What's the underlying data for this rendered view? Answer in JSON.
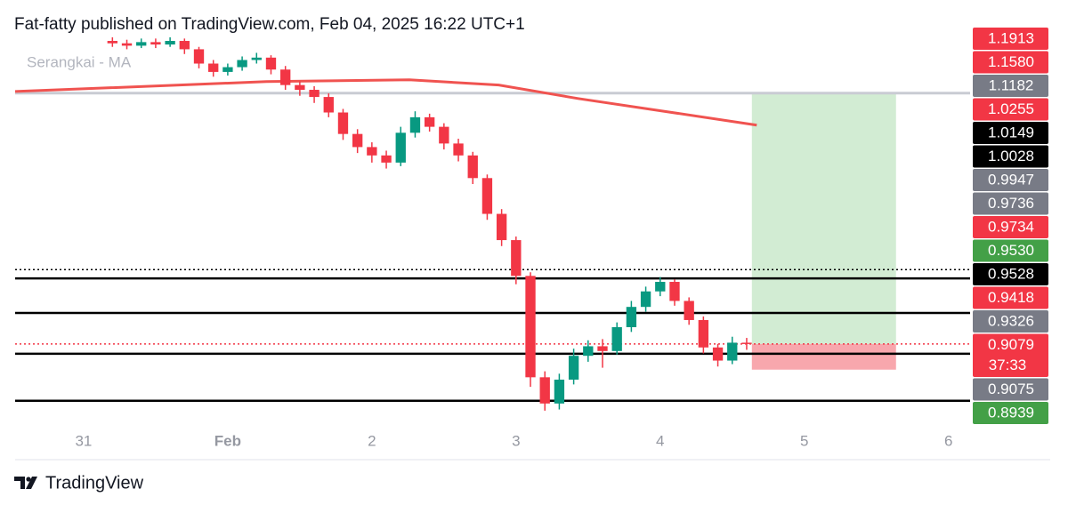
{
  "header": "Fat-fatty published on TradingView.com, Feb 04, 2025 16:22 UTC+1",
  "footer": "TradingView",
  "chart_data": {
    "type": "candlestick",
    "legend": "Serangkai - MA",
    "up_color": "#089981",
    "down_color": "#f23645",
    "xlim": [
      -0.475,
      6.15
    ],
    "ylim": [
      0.84,
      1.165
    ],
    "xticks": [
      {
        "value": 0,
        "label": "31"
      },
      {
        "value": 1,
        "label": "Feb"
      },
      2,
      3,
      4,
      5,
      6
    ],
    "x": [
      0.2,
      0.3,
      0.4,
      0.5,
      0.6,
      0.7,
      0.8,
      0.9,
      1.0,
      1.1,
      1.2,
      1.3,
      1.4,
      1.5,
      1.6,
      1.7,
      1.8,
      1.9,
      2.0,
      2.1,
      2.2,
      2.3,
      2.4,
      2.5,
      2.6,
      2.7,
      2.8,
      2.9,
      3.0,
      3.1,
      3.2,
      3.3,
      3.4,
      3.5,
      3.6,
      3.7,
      3.8,
      3.9,
      4.0,
      4.1,
      4.2,
      4.3,
      4.4,
      4.5,
      4.6
    ],
    "open": [
      1.162,
      1.16,
      1.158,
      1.161,
      1.159,
      1.162,
      1.155,
      1.143,
      1.136,
      1.14,
      1.146,
      1.148,
      1.138,
      1.125,
      1.121,
      1.115,
      1.102,
      1.084,
      1.073,
      1.066,
      1.06,
      1.085,
      1.098,
      1.09,
      1.076,
      1.066,
      1.047,
      1.017,
      0.995,
      0.965,
      0.88,
      0.858,
      0.878,
      0.898,
      0.906,
      0.902,
      0.922,
      0.939,
      0.952,
      0.96,
      0.944,
      0.928,
      0.905,
      0.894,
      0.909
    ],
    "high": [
      1.165,
      1.163,
      1.164,
      1.164,
      1.166,
      1.164,
      1.157,
      1.146,
      1.143,
      1.149,
      1.152,
      1.15,
      1.141,
      1.128,
      1.124,
      1.118,
      1.105,
      1.088,
      1.077,
      1.07,
      1.09,
      1.103,
      1.101,
      1.093,
      1.08,
      1.069,
      1.05,
      1.021,
      0.998,
      0.968,
      0.885,
      0.883,
      0.904,
      0.911,
      0.912,
      0.926,
      0.944,
      0.956,
      0.964,
      0.962,
      0.947,
      0.931,
      0.908,
      0.914,
      0.913
    ],
    "low": [
      1.157,
      1.155,
      1.156,
      1.156,
      1.157,
      1.151,
      1.139,
      1.132,
      1.133,
      1.137,
      1.143,
      1.134,
      1.121,
      1.116,
      1.11,
      1.098,
      1.079,
      1.068,
      1.06,
      1.055,
      1.057,
      1.081,
      1.086,
      1.071,
      1.061,
      1.042,
      1.012,
      0.99,
      0.958,
      0.872,
      0.852,
      0.853,
      0.874,
      0.893,
      0.888,
      0.899,
      0.918,
      0.935,
      0.948,
      0.94,
      0.924,
      0.9,
      0.889,
      0.891,
      0.903
    ],
    "close": [
      1.16,
      1.158,
      1.161,
      1.159,
      1.162,
      1.155,
      1.143,
      1.136,
      1.14,
      1.146,
      1.148,
      1.138,
      1.125,
      1.121,
      1.115,
      1.102,
      1.084,
      1.073,
      1.066,
      1.06,
      1.085,
      1.098,
      1.09,
      1.076,
      1.066,
      1.047,
      1.017,
      0.995,
      0.965,
      0.88,
      0.858,
      0.878,
      0.898,
      0.906,
      0.902,
      0.922,
      0.939,
      0.952,
      0.96,
      0.944,
      0.928,
      0.905,
      0.894,
      0.909,
      0.9079
    ],
    "ma": {
      "color": "#f05350",
      "x": [
        -0.475,
        1.27,
        2.26,
        2.88,
        3.43,
        4.05,
        4.67
      ],
      "values": [
        1.1196,
        1.1279,
        1.1294,
        1.125,
        1.1137,
        1.1026,
        1.0914
      ]
    },
    "levels": [
      {
        "value": 1.1182,
        "color": "#c9cbd3",
        "style": "solid"
      },
      {
        "value": 0.9703,
        "color": "#000000",
        "style": "dotted"
      },
      {
        "value": 0.9629,
        "color": "#000000",
        "style": "solid"
      },
      {
        "value": 0.9339,
        "color": "#000000",
        "style": "solid"
      },
      {
        "value": 0.8997,
        "color": "#000000",
        "style": "solid"
      },
      {
        "value": 0.8603,
        "color": "#000000",
        "style": "solid"
      },
      {
        "value": 0.9079,
        "color": "#f23645",
        "style": "dotted"
      }
    ],
    "position": {
      "x": [
        4.636,
        5.636
      ],
      "entry": 0.9079,
      "target": 1.1182,
      "stop": 0.8864,
      "target_color": "#d2ecd3",
      "stop_color": "#f8a7ad"
    },
    "price_tags": [
      {
        "value": 1.1913,
        "label": "1.1913",
        "color": "#f23645"
      },
      {
        "value": 1.158,
        "label": "1.1580",
        "color": "#f23645"
      },
      {
        "value": 1.1182,
        "label": "1.1182",
        "color": "#787b86"
      },
      {
        "value": 1.0255,
        "label": "1.0255",
        "color": "#f23645"
      },
      {
        "value": 1.0149,
        "label": "1.0149",
        "color": "#000000"
      },
      {
        "value": 1.0028,
        "label": "1.0028",
        "color": "#000000"
      },
      {
        "value": 0.9947,
        "label": "0.9947",
        "color": "#787b86"
      },
      {
        "value": 0.9736,
        "label": "0.9736",
        "color": "#787b86"
      },
      {
        "value": 0.9734,
        "label": "0.9734",
        "color": "#f23645"
      },
      {
        "value": 0.953,
        "label": "0.9530",
        "color": "#43a047"
      },
      {
        "value": 0.9528,
        "label": "0.9528",
        "color": "#000000"
      },
      {
        "value": 0.9418,
        "label": "0.9418",
        "color": "#f23645"
      },
      {
        "value": 0.9326,
        "label": "0.9326",
        "color": "#787b86"
      },
      {
        "value": 0.9079,
        "label": "0.9079",
        "color": "#f23645",
        "countdown": "37:33"
      },
      {
        "value": 0.9075,
        "label": "0.9075",
        "color": "#787b86"
      },
      {
        "value": 0.8939,
        "label": "0.8939",
        "color": "#43a047"
      }
    ]
  }
}
